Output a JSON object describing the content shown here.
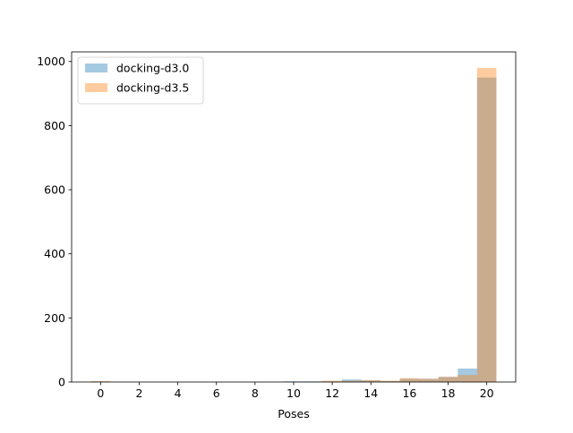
{
  "chart_data": {
    "type": "bar",
    "title": "",
    "xlabel": "Poses",
    "ylabel": "",
    "xlim": [
      -1.5,
      21.5
    ],
    "ylim": [
      0,
      1030
    ],
    "bar_width": 1.0,
    "x_ticks": [
      "0",
      "2",
      "4",
      "6",
      "8",
      "10",
      "12",
      "14",
      "16",
      "18",
      "20"
    ],
    "y_ticks": [
      "0",
      "200",
      "400",
      "600",
      "800",
      "1000"
    ],
    "grid": false,
    "legend_position": "top-left",
    "x": [
      0,
      1,
      2,
      3,
      4,
      5,
      6,
      7,
      8,
      9,
      10,
      11,
      12,
      13,
      14,
      15,
      16,
      17,
      18,
      19,
      20
    ],
    "series": [
      {
        "name": "docking-d3.0",
        "color": "#1f77b4",
        "opacity": 0.4,
        "values": [
          1,
          0,
          0,
          0,
          0,
          0,
          0,
          0,
          0,
          0,
          2,
          2,
          2,
          8,
          5,
          3,
          10,
          10,
          16,
          42,
          950
        ]
      },
      {
        "name": "docking-d3.5",
        "color": "#ff7f0e",
        "opacity": 0.4,
        "values": [
          3,
          0,
          0,
          0,
          0,
          0,
          0,
          0,
          0,
          0,
          0,
          1,
          4,
          4,
          6,
          4,
          12,
          10,
          16,
          22,
          980
        ]
      }
    ]
  }
}
